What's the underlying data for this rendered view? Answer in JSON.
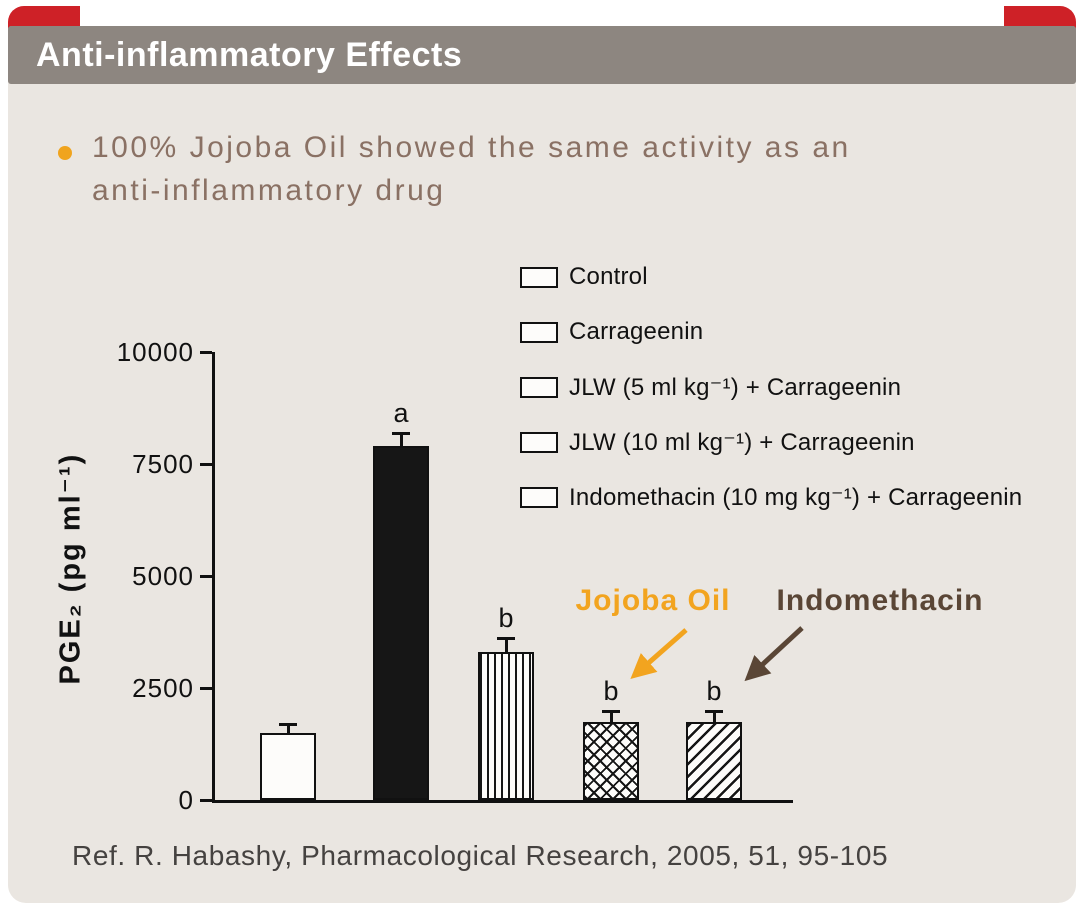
{
  "colors": {
    "header_bg": "#8D8680",
    "card_bg": "#EAE6E1",
    "accent_red": "#CE2127",
    "bullet_dot_orange": "#F0A41E",
    "bullet_text_brown": "#8A7164",
    "jojoba_orange": "#F2A41F",
    "indomethacin_brown": "#5A4636",
    "chart_ink": "#111111"
  },
  "header": {
    "title": "Anti-inflammatory Effects"
  },
  "bullet": {
    "lines": [
      "100% Jojoba Oil showed the same activity as an",
      "anti-inflammatory drug"
    ]
  },
  "chart_data": {
    "type": "bar",
    "title": "",
    "xlabel": "",
    "ylabel": "PGE₂ (pg ml⁻¹)",
    "ylim": [
      0,
      10000
    ],
    "yticks": [
      0,
      2500,
      5000,
      7500,
      10000
    ],
    "grid": false,
    "legend_position": "top-right",
    "categories": [
      "Control",
      "Carrageenin",
      "JLW (5 ml kg⁻¹) + Carrageenin",
      "JLW (10 ml kg⁻¹) + Carrageenin",
      "Indomethacin (10 mg kg⁻¹) + Carrageenin"
    ],
    "bars": [
      {
        "label": "Control",
        "value": 1500,
        "error": 150,
        "sig": "",
        "pattern": "plain"
      },
      {
        "label": "Carrageenin",
        "value": 7900,
        "error": 250,
        "sig": "a",
        "pattern": "solid"
      },
      {
        "label": "JLW (5 ml kg⁻¹) + Carrageenin",
        "value": 3300,
        "error": 280,
        "sig": "b",
        "pattern": "vertical"
      },
      {
        "label": "JLW (10 ml kg⁻¹) + Carrageenin",
        "value": 1750,
        "error": 200,
        "sig": "b",
        "pattern": "crosshatch"
      },
      {
        "label": "Indomethacin (10 mg kg⁻¹) + Carrageenin",
        "value": 1750,
        "error": 200,
        "sig": "b",
        "pattern": "diagonal"
      }
    ]
  },
  "annotations": {
    "jojoba": {
      "label": "Jojoba Oil",
      "color": "#F2A41F"
    },
    "indomethacin": {
      "label": "Indomethacin",
      "color": "#5A4636"
    }
  },
  "footer": {
    "reference": "Ref. R. Habashy, Pharmacological Research, 2005, 51, 95-105"
  }
}
